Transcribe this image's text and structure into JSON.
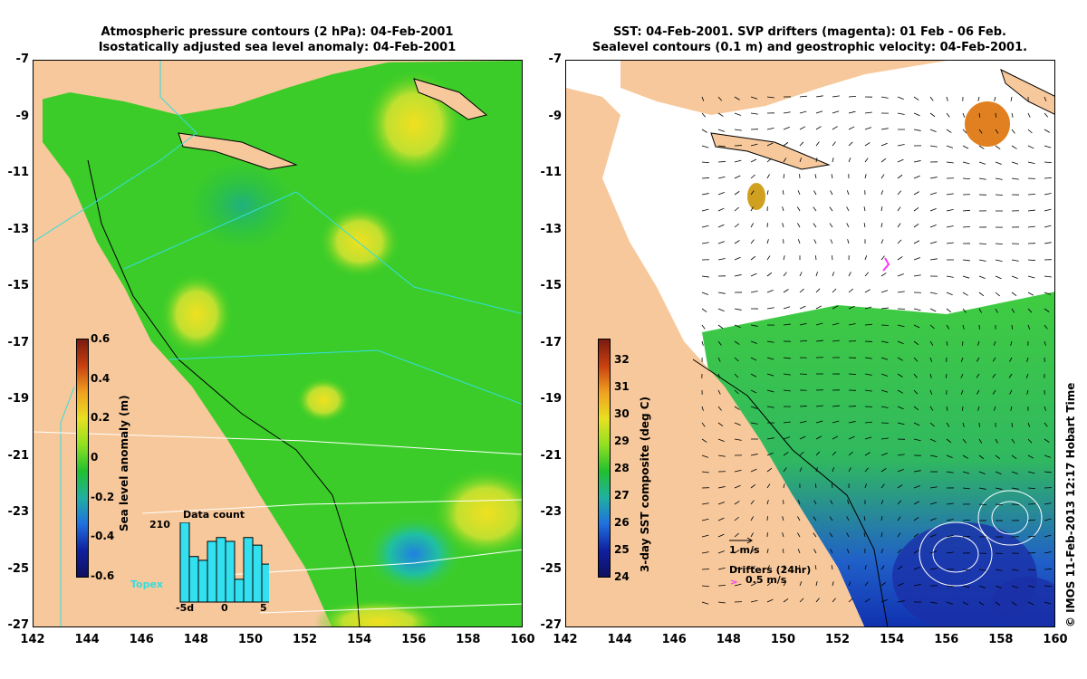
{
  "left_panel": {
    "title_line1": "Atmospheric pressure contours (2 hPa): 04-Feb-2001",
    "title_line2": "Isostatically adjusted sea level anomaly: 04-Feb-2001",
    "lat_ticks": [
      "-7",
      "-9",
      "-11",
      "-13",
      "-15",
      "-17",
      "-19",
      "-21",
      "-23",
      "-25",
      "-27"
    ],
    "lon_ticks": [
      "142",
      "144",
      "146",
      "148",
      "150",
      "152",
      "154",
      "156",
      "158",
      "160"
    ],
    "colorbar": {
      "label": "Sea level anomaly (m)",
      "ticks": [
        "0.6",
        "0.4",
        "0.2",
        "0",
        "-0.2",
        "-0.4",
        "-0.6"
      ]
    },
    "inset": {
      "title": "Data count",
      "ymax": "210",
      "xticks": [
        "-5d",
        "0",
        "5"
      ],
      "bars": [
        210,
        120,
        110,
        160,
        170,
        160,
        60,
        170,
        150,
        100
      ],
      "topex_label": "Topex"
    }
  },
  "right_panel": {
    "title_line1": "SST: 04-Feb-2001. SVP drifters (magenta): 01 Feb - 06 Feb.",
    "title_line2": "Sealevel contours (0.1 m) and geostrophic velocity: 04-Feb-2001.",
    "lat_ticks": [
      "-7",
      "-9",
      "-11",
      "-13",
      "-15",
      "-17",
      "-19",
      "-21",
      "-23",
      "-25",
      "-27"
    ],
    "lon_ticks": [
      "142",
      "144",
      "146",
      "148",
      "150",
      "152",
      "154",
      "156",
      "158",
      "160"
    ],
    "colorbar": {
      "label": "3-day SST composite (deg C)",
      "ticks": [
        "32",
        "31",
        "30",
        "29",
        "28",
        "27",
        "26",
        "25",
        "24"
      ]
    },
    "velocity_scale": "1 m/s",
    "drifters_label": "Drifters (24hr)",
    "drifter_scale": "0.5 m/s"
  },
  "credit": "© IMOS 11-Feb-2013 12:17 Hobart Time",
  "colors": {
    "land": "#f7c89b",
    "sea_level_green": "#22cc22",
    "sst_green": "#33cc44",
    "sst_blue": "#2255cc",
    "topex_track": "#33dddd",
    "drifter": "#ff33ff"
  }
}
